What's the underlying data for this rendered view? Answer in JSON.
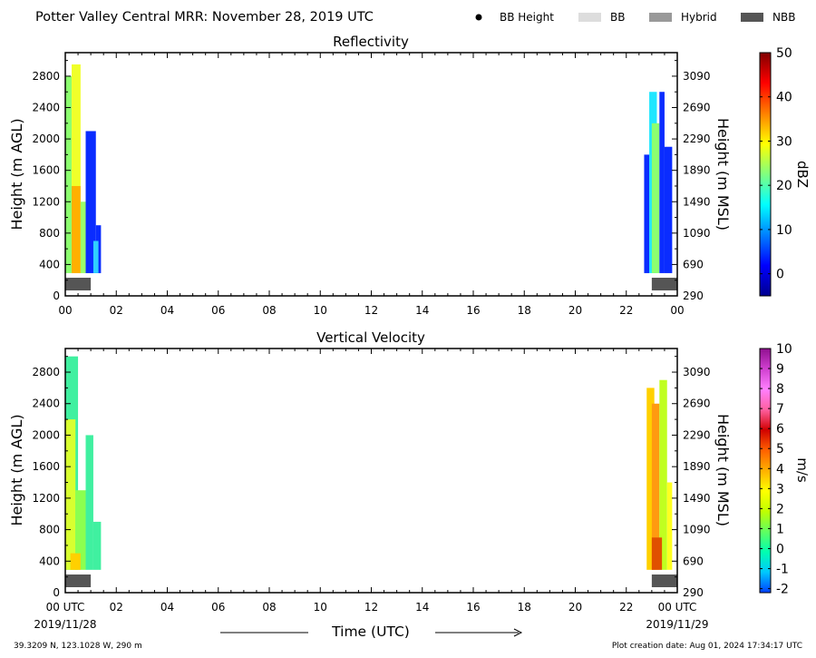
{
  "header": {
    "title": "Potter Valley Central MRR:  November 28, 2019 UTC",
    "legend": [
      {
        "label": "BB Height",
        "marker": "dot",
        "color": "#000000"
      },
      {
        "label": "BB",
        "marker": "box",
        "color": "#dddddd"
      },
      {
        "label": "Hybrid",
        "marker": "box",
        "color": "#999999"
      },
      {
        "label": "NBB",
        "marker": "box",
        "color": "#555555"
      }
    ]
  },
  "footer": {
    "location": "39.3209 N, 123.1028 W, 290 m",
    "creation": "Plot creation date: Aug 01, 2024 17:34:17 UTC",
    "xlabel": "Time (UTC)",
    "start_date": "2019/11/28",
    "end_date": "2019/11/29"
  },
  "chart_data": [
    {
      "type": "heatmap",
      "title": "Reflectivity",
      "ylabel": "Height (m AGL)",
      "y2label": "Height (m MSL)",
      "xticks": [
        "00",
        "02",
        "04",
        "06",
        "08",
        "10",
        "12",
        "14",
        "16",
        "18",
        "20",
        "22",
        "00"
      ],
      "xlim": [
        0,
        24
      ],
      "ylim": [
        0,
        3100
      ],
      "yticks": [
        0,
        400,
        800,
        1200,
        1600,
        2000,
        2400,
        2800
      ],
      "y2ticks": [
        290,
        690,
        1090,
        1490,
        1890,
        2290,
        2690,
        3090
      ],
      "colorbar": {
        "label": "dBZ",
        "min": -5,
        "max": 50,
        "ticks": [
          0,
          10,
          20,
          30,
          40,
          50
        ],
        "colors": [
          "#00008f",
          "#0000ff",
          "#0080ff",
          "#00ffff",
          "#80ff80",
          "#ffff00",
          "#ff8000",
          "#ff0000",
          "#800000"
        ]
      },
      "bands": [
        {
          "x0": 0.0,
          "x1": 0.25,
          "top": 2800,
          "color": "#8cff70"
        },
        {
          "x0": 0.25,
          "x1": 0.6,
          "top": 2950,
          "color": "#f0ff2a"
        },
        {
          "x0": 0.25,
          "x1": 0.6,
          "top": 1400,
          "color": "#ffb000"
        },
        {
          "x0": 0.6,
          "x1": 0.9,
          "top": 1200,
          "color": "#9aff6a"
        },
        {
          "x0": 0.8,
          "x1": 1.2,
          "top": 2100,
          "color": "#0a2cff"
        },
        {
          "x0": 1.2,
          "x1": 1.4,
          "top": 900,
          "color": "#0a2cff"
        },
        {
          "x0": 1.1,
          "x1": 1.3,
          "top": 700,
          "color": "#30d0ff"
        },
        {
          "x0": 22.9,
          "x1": 23.2,
          "top": 2600,
          "color": "#20e6ff"
        },
        {
          "x0": 23.0,
          "x1": 23.3,
          "top": 2200,
          "color": "#8cff70"
        },
        {
          "x0": 23.3,
          "x1": 23.5,
          "top": 2600,
          "color": "#0a2cff"
        },
        {
          "x0": 22.7,
          "x1": 22.9,
          "top": 1800,
          "color": "#0a2cff"
        },
        {
          "x0": 23.5,
          "x1": 23.8,
          "top": 1900,
          "color": "#0a2cff"
        }
      ],
      "bright_band": [
        {
          "x0": 0.0,
          "x1": 1.0,
          "type": "NBB"
        },
        {
          "x0": 23.0,
          "x1": 24.0,
          "type": "NBB"
        }
      ]
    },
    {
      "type": "heatmap",
      "title": "Vertical Velocity",
      "ylabel": "Height (m AGL)",
      "y2label": "Height (m MSL)",
      "xticks": [
        "00 UTC",
        "02",
        "04",
        "06",
        "08",
        "10",
        "12",
        "14",
        "16",
        "18",
        "20",
        "22",
        "00 UTC"
      ],
      "xlim": [
        0,
        24
      ],
      "ylim": [
        0,
        3100
      ],
      "yticks": [
        0,
        400,
        800,
        1200,
        1600,
        2000,
        2400,
        2800
      ],
      "y2ticks": [
        290,
        690,
        1090,
        1490,
        1890,
        2290,
        2690,
        3090
      ],
      "colorbar": {
        "label": "m/s",
        "min": -2.2,
        "max": 10,
        "ticks": [
          -2,
          -1,
          0,
          1,
          2,
          3,
          4,
          5,
          6,
          7,
          8,
          9,
          10
        ],
        "colors": [
          "#0040ff",
          "#00c8ff",
          "#00ffb0",
          "#60ff60",
          "#c0ff00",
          "#ffff00",
          "#ffb000",
          "#ff6000",
          "#d00000",
          "#ff60a0",
          "#ff80ff",
          "#d040d0",
          "#901090"
        ]
      },
      "bands": [
        {
          "x0": 0.0,
          "x1": 0.5,
          "top": 3000,
          "color": "#40f0a0"
        },
        {
          "x0": 0.0,
          "x1": 0.4,
          "top": 2200,
          "color": "#d8ff30"
        },
        {
          "x0": 0.4,
          "x1": 0.8,
          "top": 1300,
          "color": "#8cff50"
        },
        {
          "x0": 0.8,
          "x1": 1.1,
          "top": 2000,
          "color": "#40f0a0"
        },
        {
          "x0": 1.1,
          "x1": 1.4,
          "top": 900,
          "color": "#40f0a0"
        },
        {
          "x0": 0.2,
          "x1": 0.6,
          "top": 500,
          "color": "#ffd000"
        },
        {
          "x0": 22.8,
          "x1": 23.1,
          "top": 2600,
          "color": "#ffd000"
        },
        {
          "x0": 23.0,
          "x1": 23.3,
          "top": 2400,
          "color": "#ff9a10"
        },
        {
          "x0": 23.3,
          "x1": 23.6,
          "top": 2700,
          "color": "#c0ff20"
        },
        {
          "x0": 23.6,
          "x1": 23.8,
          "top": 1400,
          "color": "#ffff20"
        },
        {
          "x0": 23.0,
          "x1": 23.4,
          "top": 700,
          "color": "#e05000"
        }
      ],
      "bright_band": [
        {
          "x0": 0.0,
          "x1": 1.0,
          "type": "NBB"
        },
        {
          "x0": 23.0,
          "x1": 24.0,
          "type": "NBB"
        }
      ]
    }
  ]
}
